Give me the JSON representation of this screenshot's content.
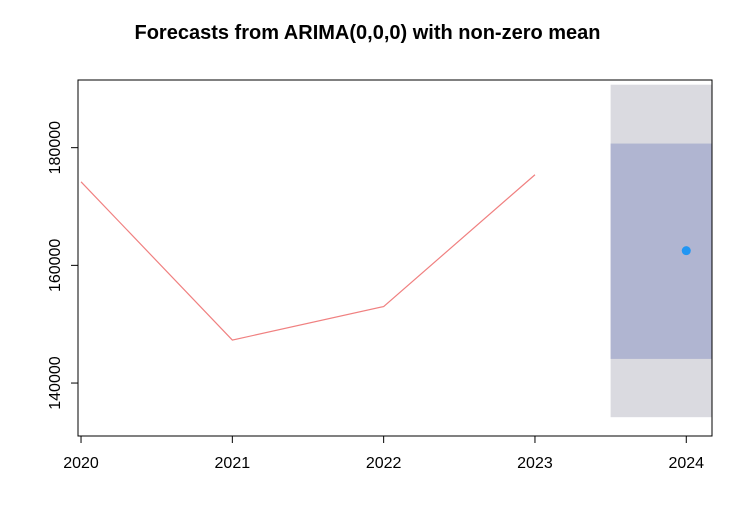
{
  "chart_data": {
    "type": "line",
    "title": "Forecasts from ARIMA(0,0,0) with non-zero mean",
    "xlabel": "",
    "ylabel": "",
    "xlim": [
      2019.98,
      2024.17
    ],
    "ylim": [
      131000,
      191500
    ],
    "x_ticks": [
      2020,
      2021,
      2022,
      2023,
      2024
    ],
    "y_ticks": [
      140000,
      160000,
      180000
    ],
    "series": [
      {
        "x": [
          2020,
          2021,
          2022,
          2023
        ],
        "values": [
          174200,
          147300,
          153000,
          175400
        ],
        "color": "#f08080"
      }
    ],
    "forecast": {
      "x": 2024,
      "point": 162500,
      "lo80": 144100,
      "hi80": 180700,
      "lo95": 134200,
      "hi95": 190700,
      "band_x_start": 2023.5,
      "point_color": "#2196f3",
      "band80_color": "#b0b5d1",
      "band95_color": "#dadae0"
    },
    "grid": false
  }
}
